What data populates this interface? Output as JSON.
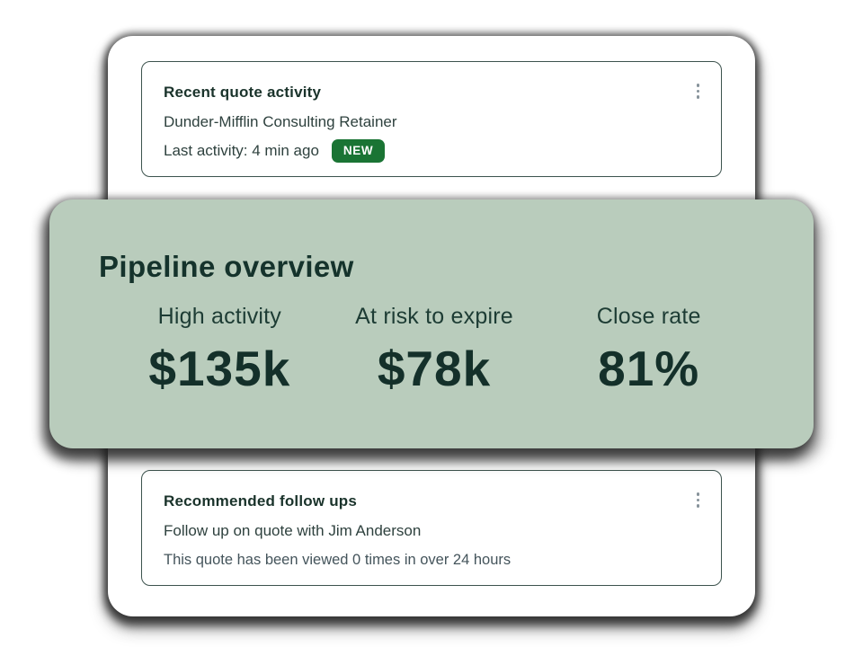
{
  "colors": {
    "panel_sage_green": "#b9ccbc",
    "badge_green": "#1a7434",
    "dark_green_text": "#15332c",
    "body_text": "#2e413e",
    "muted_text": "#44545b",
    "card_border": "#3d534e",
    "kebab_gray": "#86929a"
  },
  "recent_quote_card": {
    "title": "Recent quote activity",
    "quote_name": "Dunder-Mifflin Consulting Retainer",
    "last_activity": "Last activity: 4 min ago",
    "badge": "NEW",
    "menu_icon": "vertical-ellipsis"
  },
  "pipeline_card": {
    "title": "Pipeline overview",
    "stats": [
      {
        "label": "High activity",
        "value": "$135k"
      },
      {
        "label": "At risk to expire",
        "value": "$78k"
      },
      {
        "label": "Close rate",
        "value": "81%"
      }
    ]
  },
  "followups_card": {
    "title": "Recommended follow ups",
    "recommendation": "Follow up on quote with Jim Anderson",
    "detail": "This quote has been viewed 0 times in over 24 hours",
    "menu_icon": "vertical-ellipsis"
  }
}
